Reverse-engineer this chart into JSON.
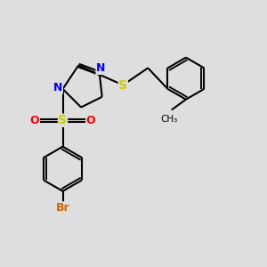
{
  "background_color": "#dedede",
  "line_color": "#000000",
  "bond_lw": 1.5,
  "atom_colors": {
    "N": "#0000ee",
    "S": "#cccc00",
    "O": "#ff0000",
    "Br": "#cc6600",
    "C": "#000000"
  },
  "figsize": [
    3.0,
    3.0
  ],
  "dpi": 100
}
